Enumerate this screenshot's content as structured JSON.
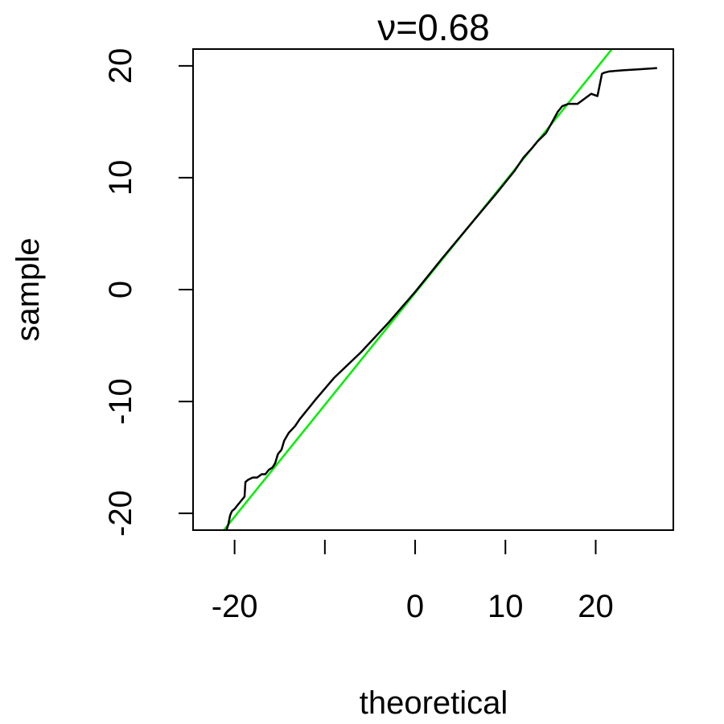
{
  "chart_data": {
    "type": "line",
    "title": "ν=0.68",
    "xlabel": "theoretical",
    "ylabel": "sample",
    "xlim": [
      -24.6,
      28.6
    ],
    "ylim": [
      -21.5,
      21.5
    ],
    "x_ticks": [
      -20,
      -10,
      0,
      10,
      20
    ],
    "x_tick_labels": [
      "-20",
      "",
      "0",
      "10",
      "20"
    ],
    "y_ticks": [
      -20,
      -10,
      0,
      10,
      20
    ],
    "y_tick_labels": [
      "-20",
      "-10",
      "0",
      "10",
      "20"
    ],
    "grid": false,
    "series": [
      {
        "color": "#000000",
        "x": [
          -20.9,
          -20.7,
          -20.5,
          -20.3,
          -20.0,
          -19.6,
          -19.2,
          -18.9,
          -18.8,
          -18.5,
          -18.0,
          -17.5,
          -17.0,
          -16.6,
          -16.2,
          -15.8,
          -15.5,
          -15.2,
          -14.8,
          -14.5,
          -14.0,
          -13.3,
          -12.8,
          -12.0,
          -11.0,
          -9.0,
          -6.0,
          -3.0,
          0.0,
          3.0,
          6.0,
          9.0,
          11.0,
          12.0,
          13.0,
          13.5,
          14.5,
          15.2,
          15.8,
          16.3,
          17.0,
          18.0,
          19.0,
          19.5,
          20.2,
          20.5,
          20.7,
          21.0,
          21.5,
          23.0,
          25.0,
          26.8
        ],
        "y": [
          -21.5,
          -21.0,
          -20.2,
          -19.8,
          -19.6,
          -19.2,
          -18.8,
          -18.5,
          -17.2,
          -17.0,
          -16.8,
          -16.8,
          -16.5,
          -16.5,
          -16.1,
          -15.9,
          -15.5,
          -14.7,
          -14.3,
          -13.5,
          -12.8,
          -12.2,
          -11.6,
          -10.8,
          -9.8,
          -7.9,
          -5.6,
          -3.0,
          -0.2,
          2.8,
          5.7,
          8.6,
          10.6,
          11.8,
          12.7,
          13.2,
          14.0,
          15.0,
          15.9,
          16.4,
          16.6,
          16.6,
          17.2,
          17.5,
          17.3,
          18.5,
          19.3,
          19.4,
          19.5,
          19.6,
          19.7,
          19.8
        ]
      },
      {
        "color": "#00ee00",
        "x": [
          -21.2,
          21.8
        ],
        "y": [
          -21.5,
          21.5
        ]
      }
    ]
  }
}
